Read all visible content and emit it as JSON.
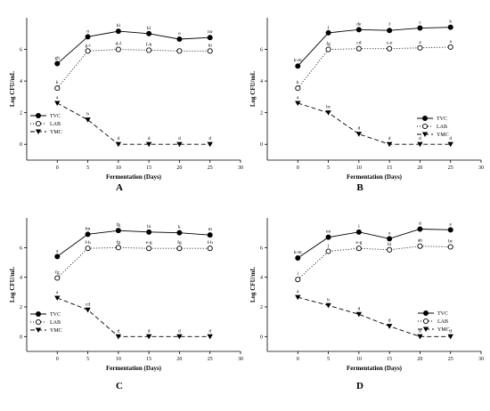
{
  "chart_data": [
    {
      "type": "line",
      "panel_label": "A",
      "x": [
        0,
        5,
        10,
        15,
        20,
        25
      ],
      "xlabel": "Fermentation (Days)",
      "ylabel": "Log CFU/mL",
      "xlim": [
        -5,
        30
      ],
      "ylim": [
        -1,
        8
      ],
      "xticks": [
        0,
        5,
        10,
        15,
        20,
        25,
        30
      ],
      "yticks": [
        0,
        2,
        4,
        6
      ],
      "legend_position": "center-left",
      "series": [
        {
          "name": "TVC",
          "marker": "filled-circle",
          "line": "solid",
          "values": [
            5.1,
            6.8,
            7.15,
            7.0,
            6.65,
            6.75
          ],
          "labels": [
            "gh",
            "n",
            "hi",
            "kl",
            "o",
            "no"
          ]
        },
        {
          "name": "LAB",
          "marker": "open-circle",
          "line": "dotted",
          "values": [
            3.55,
            5.9,
            6.0,
            5.95,
            5.9,
            5.9
          ],
          "labels": [
            "k",
            "g-i",
            "d-f",
            "f-h",
            "",
            "hi"
          ]
        },
        {
          "name": "YMC",
          "marker": "filled-triangle-down",
          "line": "dashed",
          "values": [
            2.6,
            1.55,
            0.0,
            0.0,
            0.0,
            0.0
          ],
          "labels": [
            "a",
            "b",
            "d",
            "d",
            "d",
            "d"
          ]
        }
      ]
    },
    {
      "type": "line",
      "panel_label": "B",
      "x": [
        0,
        5,
        10,
        15,
        20,
        25
      ],
      "xlabel": "Fermentation (Days)",
      "ylabel": "Log CFU/mL",
      "xlim": [
        -5,
        30
      ],
      "ylim": [
        -1,
        8
      ],
      "xticks": [
        0,
        5,
        10,
        15,
        20,
        25,
        30
      ],
      "yticks": [
        0,
        2,
        4,
        6
      ],
      "legend_position": "center-right",
      "series": [
        {
          "name": "TVC",
          "marker": "filled-circle",
          "line": "solid",
          "values": [
            4.95,
            7.05,
            7.25,
            7.2,
            7.35,
            7.4
          ],
          "labels": [
            "k-m",
            "j",
            "de",
            "f",
            "c",
            "b"
          ]
        },
        {
          "name": "LAB",
          "marker": "open-circle",
          "line": "dotted",
          "values": [
            3.55,
            6.0,
            6.05,
            6.05,
            6.1,
            6.15
          ],
          "labels": [
            "k",
            "fg",
            "cd",
            "c-e",
            "a",
            "a"
          ]
        },
        {
          "name": "YMC",
          "marker": "filled-triangle-down",
          "line": "dashed",
          "values": [
            2.6,
            2.0,
            0.65,
            0.0,
            0.0,
            0.0
          ],
          "labels": [
            "a",
            "bc",
            "d",
            "d",
            "d",
            "d"
          ]
        }
      ]
    },
    {
      "type": "line",
      "panel_label": "C",
      "x": [
        0,
        5,
        10,
        15,
        20,
        25
      ],
      "xlabel": "Fermentation (Days)",
      "ylabel": "Log CFU/mL",
      "xlim": [
        -5,
        30
      ],
      "ylim": [
        -1,
        8
      ],
      "xticks": [
        0,
        5,
        10,
        15,
        20,
        25,
        30
      ],
      "yticks": [
        0,
        2,
        4,
        6
      ],
      "legend_position": "center-left",
      "series": [
        {
          "name": "TVC",
          "marker": "filled-circle",
          "line": "solid",
          "values": [
            5.4,
            6.9,
            7.15,
            7.05,
            7.0,
            6.85
          ],
          "labels": [
            "a",
            "lm",
            "fg",
            "hi",
            "k",
            "m"
          ]
        },
        {
          "name": "LAB",
          "marker": "open-circle",
          "line": "dotted",
          "values": [
            3.95,
            5.95,
            6.0,
            5.95,
            5.95,
            5.95
          ],
          "labels": [
            "fg",
            "f-h",
            "fg",
            "e-g",
            "fg",
            "f-h"
          ]
        },
        {
          "name": "YMC",
          "marker": "filled-triangle-down",
          "line": "dashed",
          "values": [
            2.6,
            1.8,
            0.0,
            0.0,
            0.0,
            0.0
          ],
          "labels": [
            "a",
            "cd",
            "d",
            "d",
            "d",
            "d"
          ]
        }
      ]
    },
    {
      "type": "line",
      "panel_label": "D",
      "x": [
        0,
        5,
        10,
        15,
        20,
        25
      ],
      "xlabel": "Fermentation (Days)",
      "ylabel": "Log CFU/mL",
      "xlim": [
        -5,
        30
      ],
      "ylim": [
        -1,
        8
      ],
      "xticks": [
        0,
        5,
        10,
        15,
        20,
        25,
        30
      ],
      "yticks": [
        0,
        2,
        4,
        6
      ],
      "legend_position": "center-right",
      "series": [
        {
          "name": "TVC",
          "marker": "filled-circle",
          "line": "solid",
          "values": [
            5.3,
            6.7,
            7.05,
            6.6,
            7.25,
            7.2
          ],
          "labels": [
            "k-m",
            "no",
            "l",
            "o",
            "d",
            "e"
          ]
        },
        {
          "name": "LAB",
          "marker": "open-circle",
          "line": "dotted",
          "values": [
            3.85,
            5.75,
            5.95,
            5.85,
            6.1,
            6.05
          ],
          "labels": [
            "i",
            "j",
            "e-g",
            "hi",
            "ab",
            "bc"
          ]
        },
        {
          "name": "YMC",
          "marker": "filled-triangle-down",
          "line": "dashed",
          "values": [
            2.65,
            2.1,
            1.5,
            0.7,
            0.0,
            0.0
          ],
          "labels": [
            "a",
            "b",
            "d",
            "d",
            "d",
            "d"
          ]
        }
      ]
    }
  ]
}
